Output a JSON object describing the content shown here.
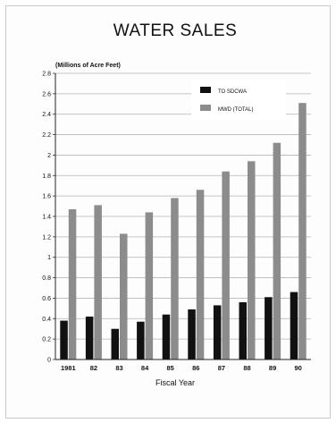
{
  "chart_data": {
    "type": "bar",
    "title": "WATER SALES",
    "ylabel": "(Millions of Acre Feet)",
    "xlabel": "Fiscal Year",
    "categories": [
      "1981",
      "82",
      "83",
      "84",
      "85",
      "86",
      "87",
      "88",
      "89",
      "90"
    ],
    "series": [
      {
        "name": "TO SDCWA",
        "color": "#111111",
        "values": [
          0.38,
          0.42,
          0.3,
          0.37,
          0.44,
          0.49,
          0.53,
          0.56,
          0.61,
          0.66
        ]
      },
      {
        "name": "MWD (TOTAL)",
        "color": "#8c8c8c",
        "values": [
          1.47,
          1.51,
          1.23,
          1.44,
          1.58,
          1.66,
          1.84,
          1.94,
          2.12,
          2.51
        ]
      }
    ],
    "ylim": [
      0,
      2.8
    ],
    "yticks": [
      "0",
      "0.2",
      "0.4",
      "0.6",
      "0.8",
      "1",
      "1.2",
      "1.4",
      "1.6",
      "1.8",
      "2",
      "2.2",
      "2.4",
      "2.6",
      "2.8"
    ],
    "grid": true,
    "legend_position": "top-right"
  }
}
